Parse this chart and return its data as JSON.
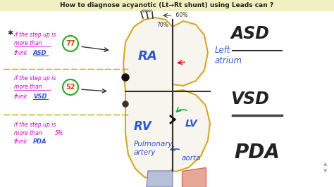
{
  "bg_color": "#ffffff",
  "title_bg": "#f0f0c0",
  "title_text": "How to diagnose acyanotic (Lt→Rt shunt) using Leads can ?",
  "title_fontsize": 6.5,
  "title_color": "#222222",
  "asd_label": "ASD",
  "vsd_label": "VSD",
  "pda_label": "PDA",
  "ra_label": "RA",
  "rv_label": "RV",
  "lv_label": "LV",
  "la_label": "Left\natrium",
  "pa_label": "Pulmonary\nartery",
  "ao_label": "aorta",
  "val_60": "← 60%",
  "val_70": "70%",
  "asd_circle_val": "77",
  "vsd_circle_val": "52",
  "pda_val": "5%",
  "left_text_color": "#cc00cc",
  "blue_label_color": "#3355cc",
  "green_circle_color": "#22aa22",
  "orange_outline": "#d4a820",
  "salmon_color": "#e8a090",
  "blue_vessel_color": "#aab0d0",
  "dashed_line_color": "#bbaa00",
  "dark_text": "#222222"
}
